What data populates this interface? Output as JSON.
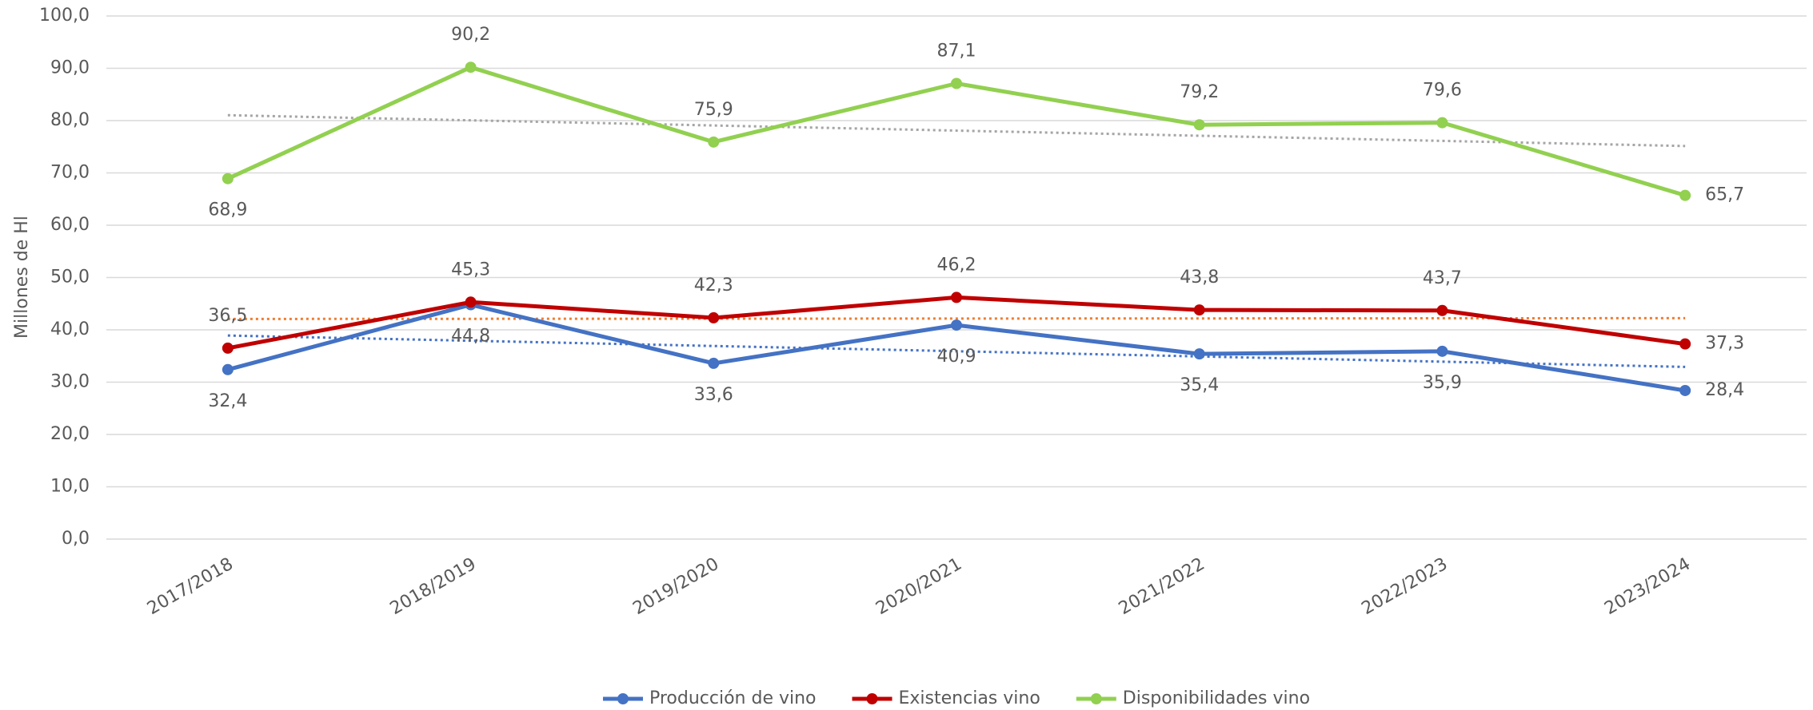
{
  "chart_data": {
    "type": "line",
    "y_label": "Millones de Hl",
    "categories": [
      "2017/2018",
      "2018/2019",
      "2019/2020",
      "2020/2021",
      "2021/2022",
      "2022/2023",
      "2023/2024"
    ],
    "series": [
      {
        "name": "Producción de vino",
        "color": "#4472c4",
        "trend_color": "#4472c4",
        "values": [
          32.4,
          44.8,
          33.6,
          40.9,
          35.4,
          35.9,
          28.4
        ],
        "value_labels": [
          "32,4",
          "44,8",
          "33,6",
          "40,9",
          "35,4",
          "35,9",
          "28,4"
        ]
      },
      {
        "name": "Existencias vino",
        "color": "#c00000",
        "trend_color": "#ed7d31",
        "values": [
          36.5,
          45.3,
          42.3,
          46.2,
          43.8,
          43.7,
          37.3
        ],
        "value_labels": [
          "36,5",
          "45,3",
          "42,3",
          "46,2",
          "43,8",
          "43,7",
          "37,3"
        ]
      },
      {
        "name": "Disponibilidades vino",
        "color": "#92d050",
        "trend_color": "#a5a5a5",
        "values": [
          68.9,
          90.2,
          75.9,
          87.1,
          79.2,
          79.6,
          65.7
        ],
        "value_labels": [
          "68,9",
          "90,2",
          "75,9",
          "87,1",
          "79,2",
          "79,6",
          "65,7"
        ]
      }
    ],
    "ylim": [
      0,
      100
    ],
    "yticks": [
      {
        "value": 0,
        "label": "0,0"
      },
      {
        "value": 10,
        "label": "10,0"
      },
      {
        "value": 20,
        "label": "20,0"
      },
      {
        "value": 30,
        "label": "30,0"
      },
      {
        "value": 40,
        "label": "40,0"
      },
      {
        "value": 50,
        "label": "50,0"
      },
      {
        "value": 60,
        "label": "60,0"
      },
      {
        "value": 70,
        "label": "70,0"
      },
      {
        "value": 80,
        "label": "80,0"
      },
      {
        "value": 90,
        "label": "90,0"
      },
      {
        "value": 100,
        "label": "100,0"
      }
    ],
    "grid": true,
    "trendlines": true,
    "legend": "bottom"
  }
}
